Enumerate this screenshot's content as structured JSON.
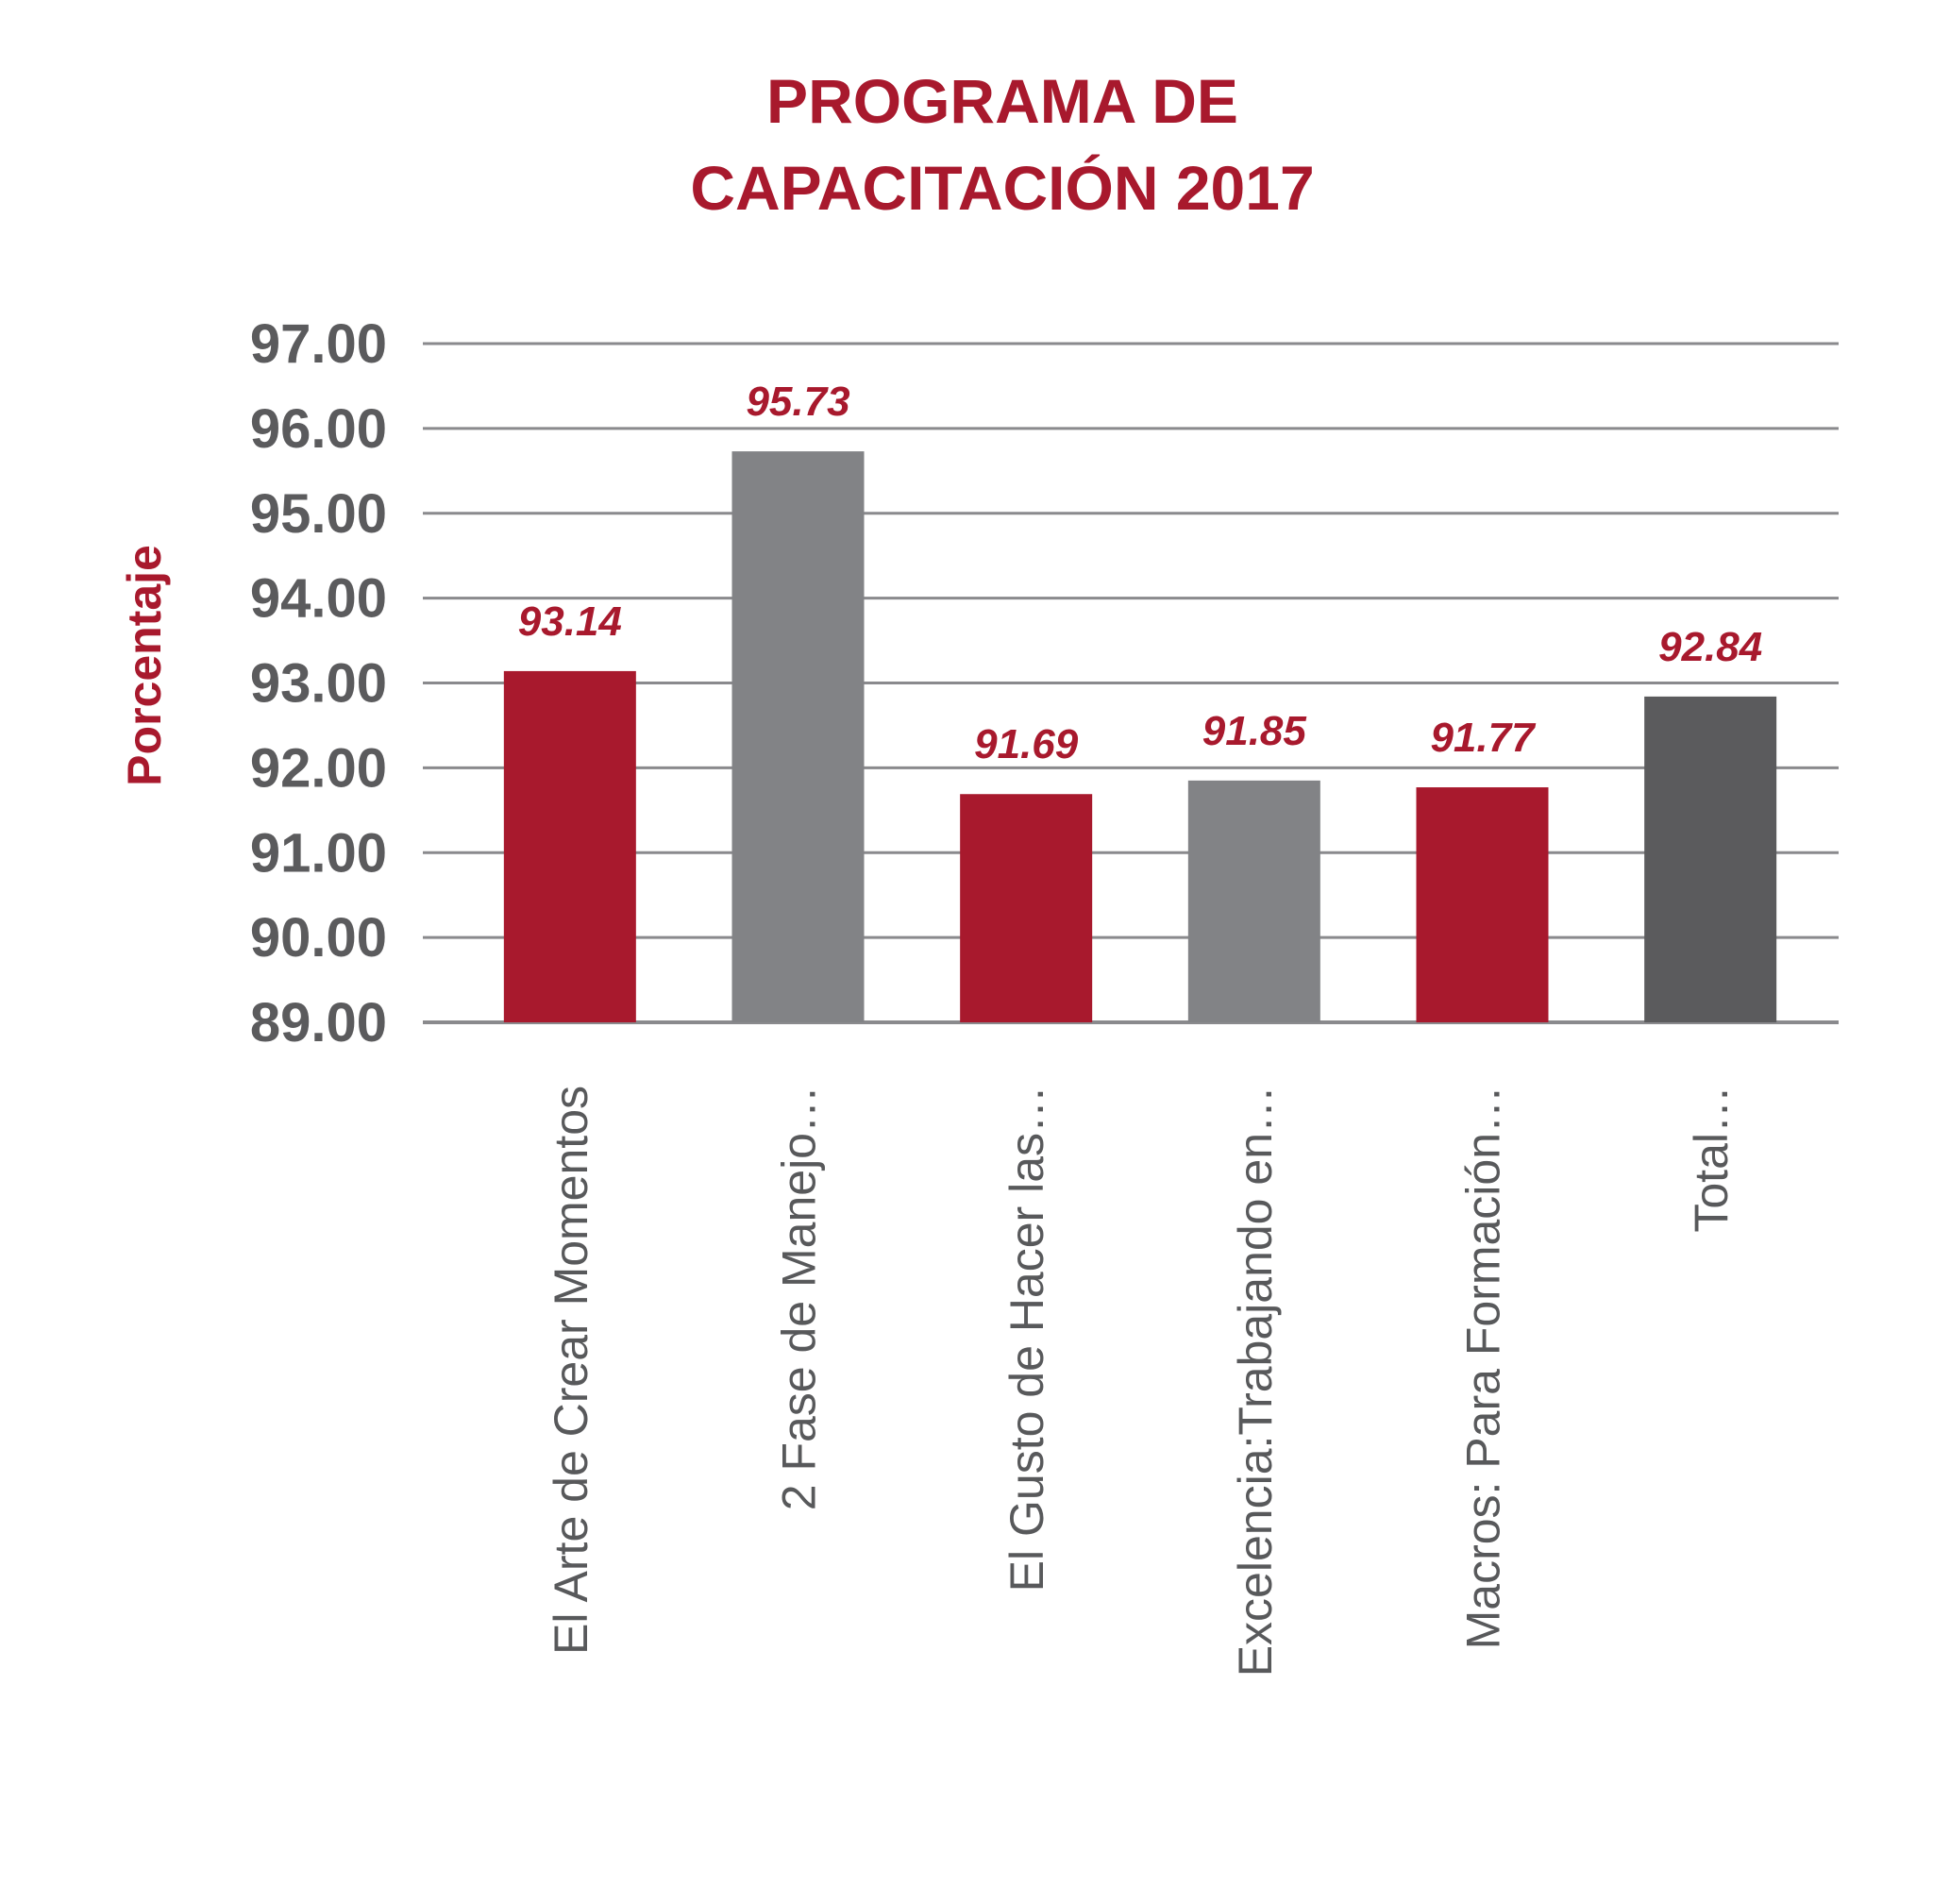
{
  "chart_data": {
    "type": "bar",
    "title_lines": [
      "PROGRAMA DE",
      "CAPACITACIÓN 2017"
    ],
    "ylabel": "Porcentaje",
    "xlabel": "",
    "ylim": [
      89,
      97
    ],
    "yticks": [
      "89.00",
      "90.00",
      "91.00",
      "92.00",
      "93.00",
      "94.00",
      "95.00",
      "96.00",
      "97.00"
    ],
    "grid": true,
    "categories": [
      "El Arte de Crear Momentos",
      "2 Fase de Manejo…",
      "El Gusto de Hacer las…",
      "Excelencia:Trabajando en…",
      "Macros: Para Formación…",
      "Total…"
    ],
    "values": [
      93.14,
      95.73,
      91.69,
      91.85,
      91.77,
      92.84
    ],
    "data_labels": [
      "93.14",
      "95.73",
      "91.69",
      "91.85",
      "91.77",
      "92.84"
    ],
    "bar_colors": [
      "#a8192d",
      "#828386",
      "#a8192d",
      "#828386",
      "#a8192d",
      "#5b5b5d"
    ]
  },
  "colors": {
    "accent": "#a8192d",
    "tick_text": "#5b5b5d",
    "grid": "#8a8a8d",
    "category_text": "#58595b"
  }
}
